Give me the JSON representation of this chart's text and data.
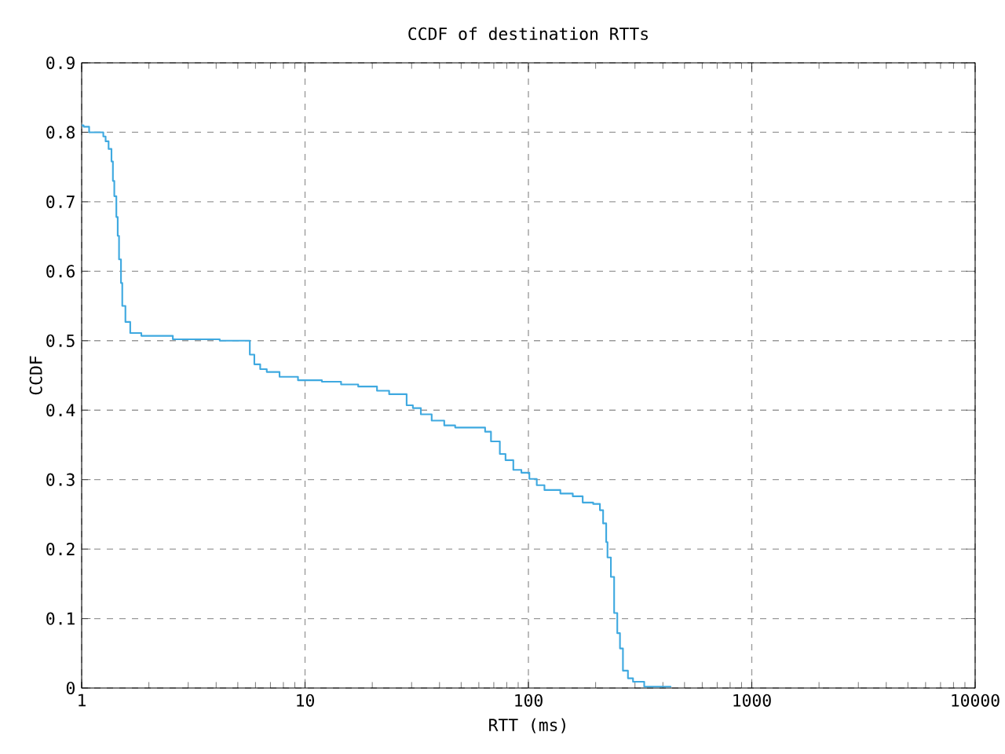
{
  "chart_data": {
    "type": "step",
    "title": "CCDF of destination RTTs",
    "xlabel": "RTT (ms)",
    "ylabel": "CCDF",
    "log": "x",
    "grid": true,
    "xlim": [
      1,
      10000
    ],
    "xticks": [
      1,
      10,
      100,
      1000,
      10000
    ],
    "ylim": [
      0,
      0.9
    ],
    "yticks": [
      0,
      0.1,
      0.2,
      0.3,
      0.4,
      0.5,
      0.6,
      0.7,
      0.8,
      0.9
    ],
    "series": [
      {
        "color": "#3fa9e0",
        "x": [
          1.0,
          1.02,
          1.08,
          1.25,
          1.28,
          1.32,
          1.36,
          1.38,
          1.4,
          1.43,
          1.45,
          1.47,
          1.5,
          1.52,
          1.57,
          1.65,
          1.85,
          2.56,
          4.15,
          5.65,
          5.66,
          5.93,
          6.3,
          6.74,
          7.69,
          9.3,
          11.9,
          14.5,
          17.3,
          21,
          23.8,
          28.5,
          30.4,
          33,
          36.9,
          42,
          47,
          59,
          64,
          68,
          74.5,
          79,
          85.6,
          93,
          101,
          109,
          118,
          139,
          158,
          175,
          195,
          209,
          216,
          223,
          226,
          234,
          242,
          250,
          257,
          265,
          279,
          294,
          330,
          433
        ],
        "values": [
          0.81,
          0.808,
          0.8,
          0.794,
          0.787,
          0.776,
          0.758,
          0.73,
          0.708,
          0.678,
          0.651,
          0.617,
          0.583,
          0.55,
          0.527,
          0.511,
          0.507,
          0.502,
          0.5,
          0.5,
          0.48,
          0.466,
          0.459,
          0.455,
          0.448,
          0.443,
          0.441,
          0.437,
          0.434,
          0.428,
          0.423,
          0.407,
          0.403,
          0.394,
          0.385,
          0.378,
          0.375,
          0.375,
          0.369,
          0.355,
          0.337,
          0.328,
          0.314,
          0.31,
          0.301,
          0.292,
          0.285,
          0.28,
          0.276,
          0.267,
          0.265,
          0.256,
          0.237,
          0.21,
          0.188,
          0.16,
          0.108,
          0.079,
          0.057,
          0.025,
          0.014,
          0.009,
          0.002,
          0.001
        ]
      }
    ]
  }
}
